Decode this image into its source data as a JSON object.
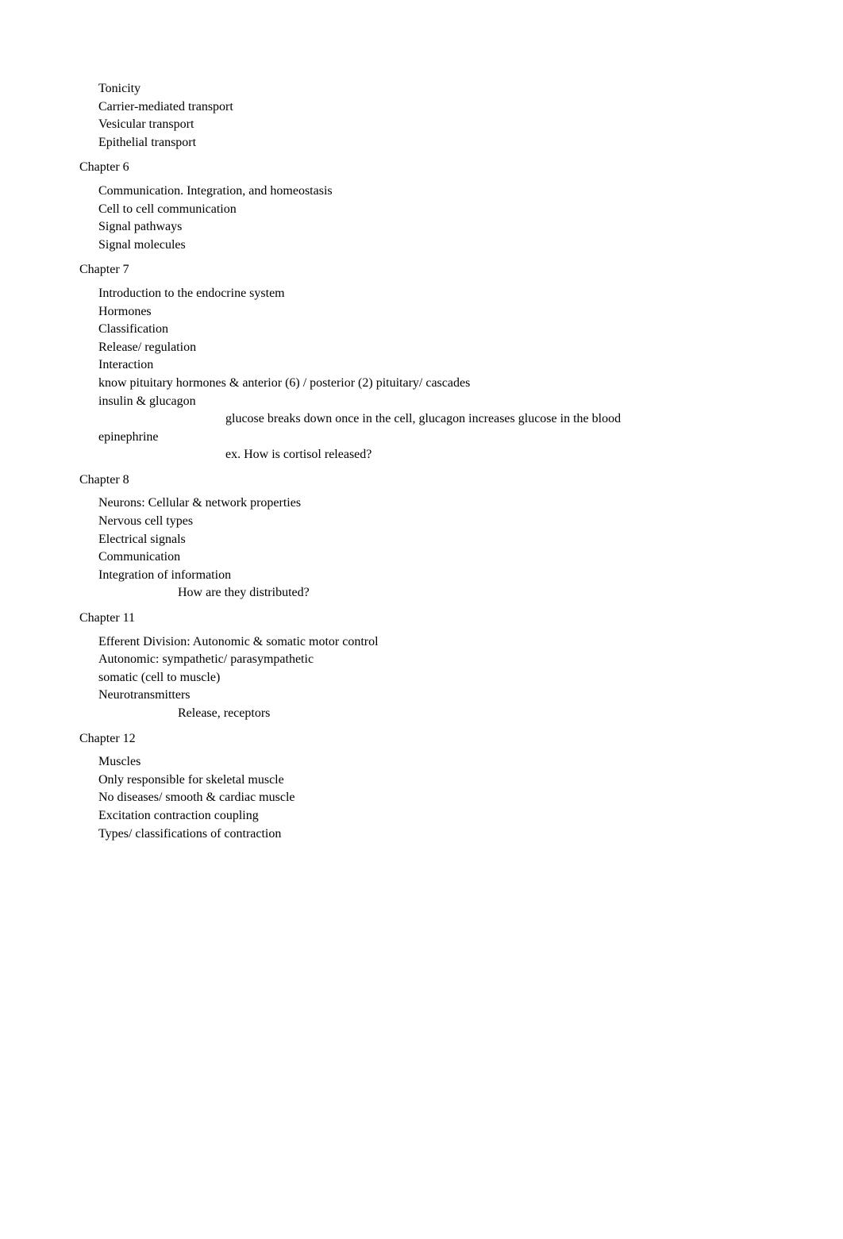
{
  "bullet_glyph": "",
  "top": {
    "tonicity": "Tonicity",
    "carrier": "Carrier-mediated transport",
    "vesicular": "Vesicular transport",
    "epithelial": "Epithelial transport"
  },
  "ch6": {
    "title": "Chapter 6",
    "main": "Communication. Integration, and homeostasis",
    "sub": [
      "Cell to cell communication",
      "Signal pathways",
      "Signal molecules"
    ]
  },
  "ch7": {
    "title": "Chapter 7",
    "main": "Introduction to the endocrine system",
    "hormones": "Hormones",
    "sub": [
      "Classification",
      "Release/ regulation",
      "Interaction",
      "know pituitary hormones & anterior (6) / posterior (2) pituitary/ cascades",
      "insulin & glucagon"
    ],
    "glucose_note": "glucose breaks down once in the cell, glucagon increases glucose in the blood",
    "epi": "epinephrine",
    "epi_note": "ex. How is cortisol released?"
  },
  "ch8": {
    "title": "Chapter 8",
    "main": "Neurons: Cellular & network properties",
    "sub": [
      "Nervous cell types",
      "Electrical signals",
      "Communication",
      "Integration of information"
    ],
    "note": "How are they distributed?"
  },
  "ch11": {
    "title": "Chapter 11",
    "main": "Efferent Division: Autonomic & somatic motor control",
    "sub": [
      "Autonomic: sympathetic/ parasympathetic",
      "somatic (cell to muscle)",
      "Neurotransmitters"
    ],
    "note": "Release, receptors"
  },
  "ch12": {
    "title": "Chapter 12",
    "main": "Muscles",
    "sub1": "Only responsible for skeletal muscle",
    "sub2": [
      "No diseases/ smooth & cardiac muscle",
      "Excitation contraction coupling",
      "Types/ classifications of contraction"
    ]
  }
}
